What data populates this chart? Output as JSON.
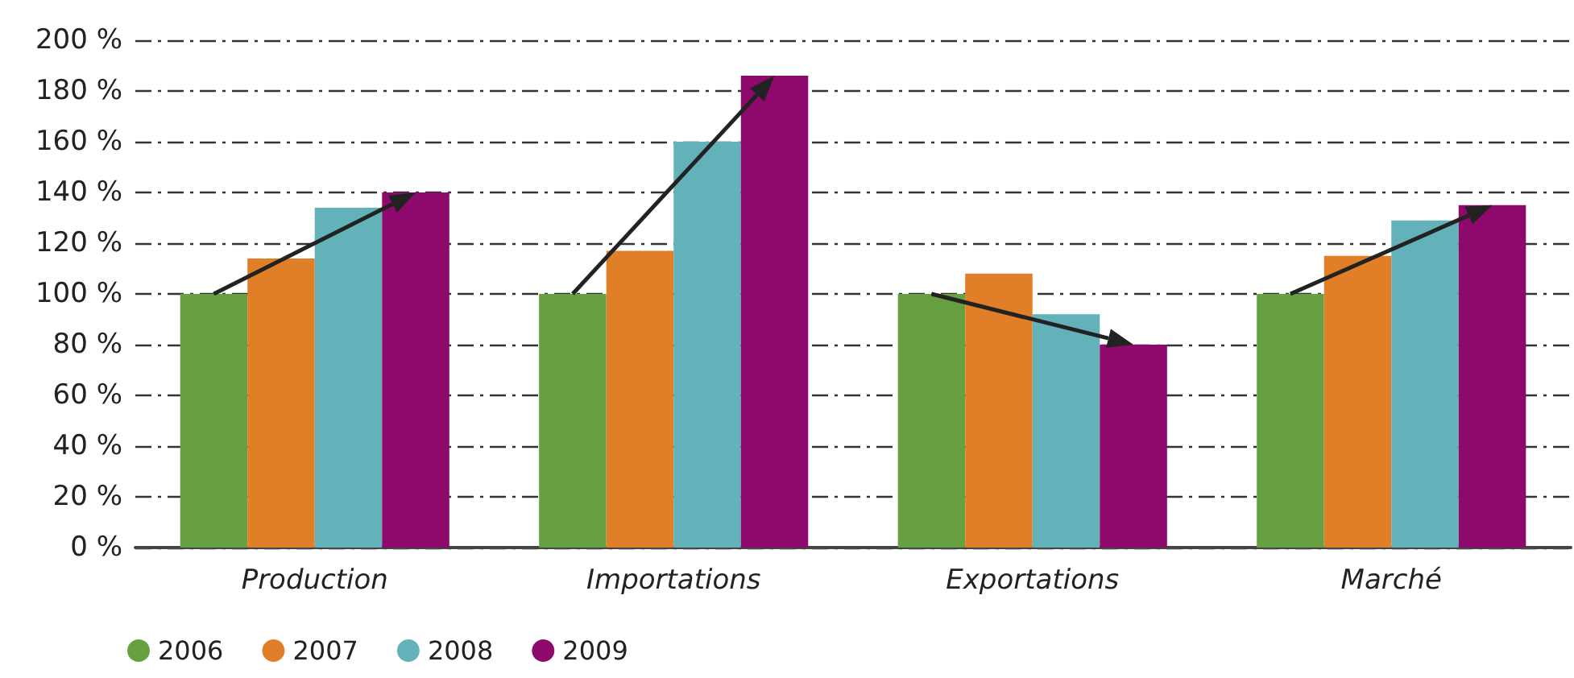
{
  "chart_data": {
    "type": "bar",
    "categories": [
      "Production",
      "Importations",
      "Exportations",
      "Marché"
    ],
    "series": [
      {
        "name": "2006",
        "color": "#66a040",
        "values": [
          100,
          100,
          100,
          100
        ]
      },
      {
        "name": "2007",
        "color": "#e07f28",
        "values": [
          114,
          117,
          108,
          115
        ]
      },
      {
        "name": "2008",
        "color": "#63b2b9",
        "values": [
          134,
          160,
          92,
          129
        ]
      },
      {
        "name": "2009",
        "color": "#8e096c",
        "values": [
          140,
          186,
          80,
          135
        ]
      }
    ],
    "ylim": [
      0,
      200
    ],
    "yticks": [
      {
        "value": 0,
        "label": "0 %"
      },
      {
        "value": 20,
        "label": "20 %"
      },
      {
        "value": 40,
        "label": "40 %"
      },
      {
        "value": 60,
        "label": "60 %"
      },
      {
        "value": 80,
        "label": "80 %"
      },
      {
        "value": 100,
        "label": "100 %"
      },
      {
        "value": 120,
        "label": "120 %"
      },
      {
        "value": 140,
        "label": "140 %"
      },
      {
        "value": 160,
        "label": "160 %"
      },
      {
        "value": 180,
        "label": "180 %"
      },
      {
        "value": 200,
        "label": "200 %"
      }
    ],
    "grid": "y",
    "legend": "bottom left"
  }
}
